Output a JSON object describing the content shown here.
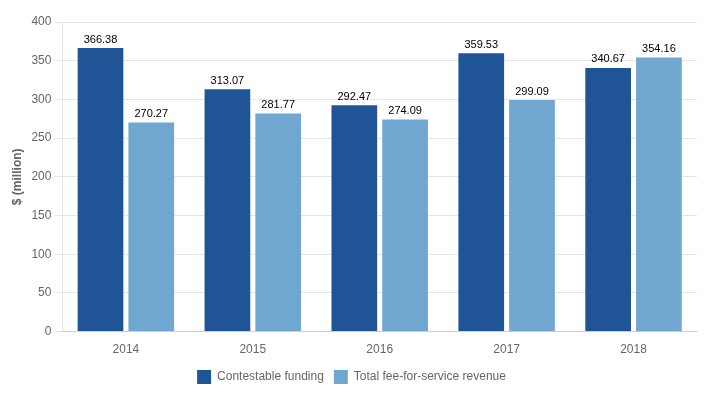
{
  "chart_data": {
    "type": "bar",
    "ylabel": "$ (million)",
    "categories": [
      "2014",
      "2015",
      "2016",
      "2017",
      "2018"
    ],
    "series": [
      {
        "name": "Contestable funding",
        "color": "#1F5496",
        "values": [
          366.38,
          313.07,
          292.47,
          359.53,
          340.67
        ]
      },
      {
        "name": "Total fee-for-service revenue",
        "color": "#70A7D0",
        "values": [
          270.27,
          281.77,
          274.09,
          299.09,
          354.16
        ]
      }
    ],
    "ylim": [
      0,
      400
    ],
    "yticks": [
      0,
      50,
      100,
      150,
      200,
      250,
      300,
      350,
      400
    ],
    "grid": true,
    "legend": "bottom",
    "data_labels": true
  }
}
